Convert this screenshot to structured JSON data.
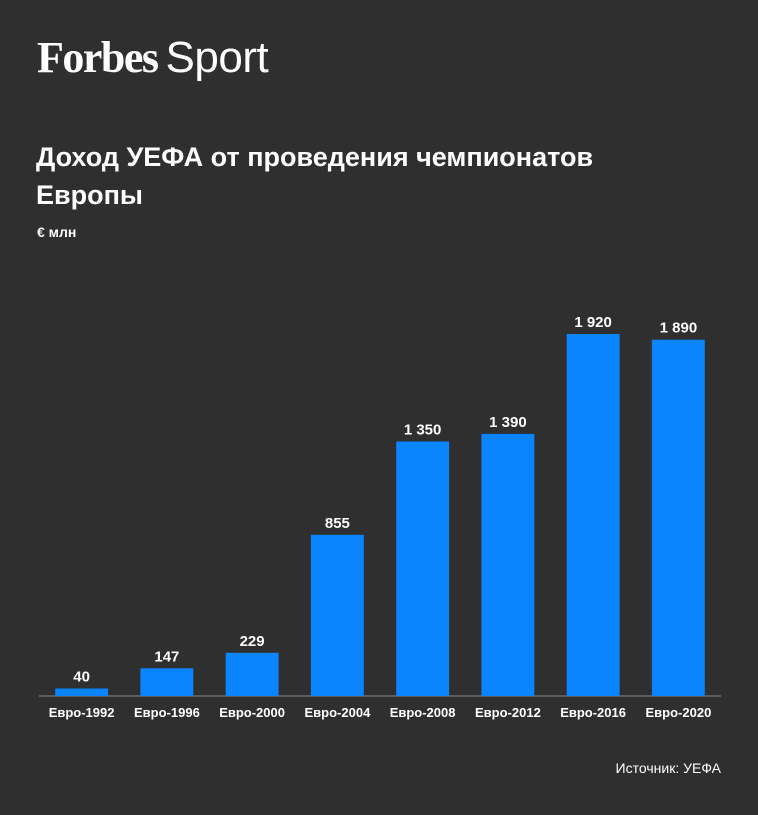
{
  "header": {
    "brand": "Forbes",
    "section": "Sport"
  },
  "footer": {
    "source": "Источник: УЕФА"
  },
  "chart_data": {
    "type": "bar",
    "title": "Доход УЕФА от проведения чемпионатов Европы",
    "ylabel": "€ млн",
    "xlabel": "",
    "categories": [
      "Евро-1992",
      "Евро-1996",
      "Евро-2000",
      "Евро-2004",
      "Евро-2008",
      "Евро-2012",
      "Евро-2016",
      "Евро-2020"
    ],
    "values": [
      40,
      147,
      229,
      855,
      1350,
      1390,
      1920,
      1890
    ],
    "value_labels": [
      "40",
      "147",
      "229",
      "855",
      "1 350",
      "1 390",
      "1 920",
      "1 890"
    ],
    "ylim": [
      0,
      1920
    ],
    "grid": false,
    "bar_color": "#0a84ff"
  }
}
